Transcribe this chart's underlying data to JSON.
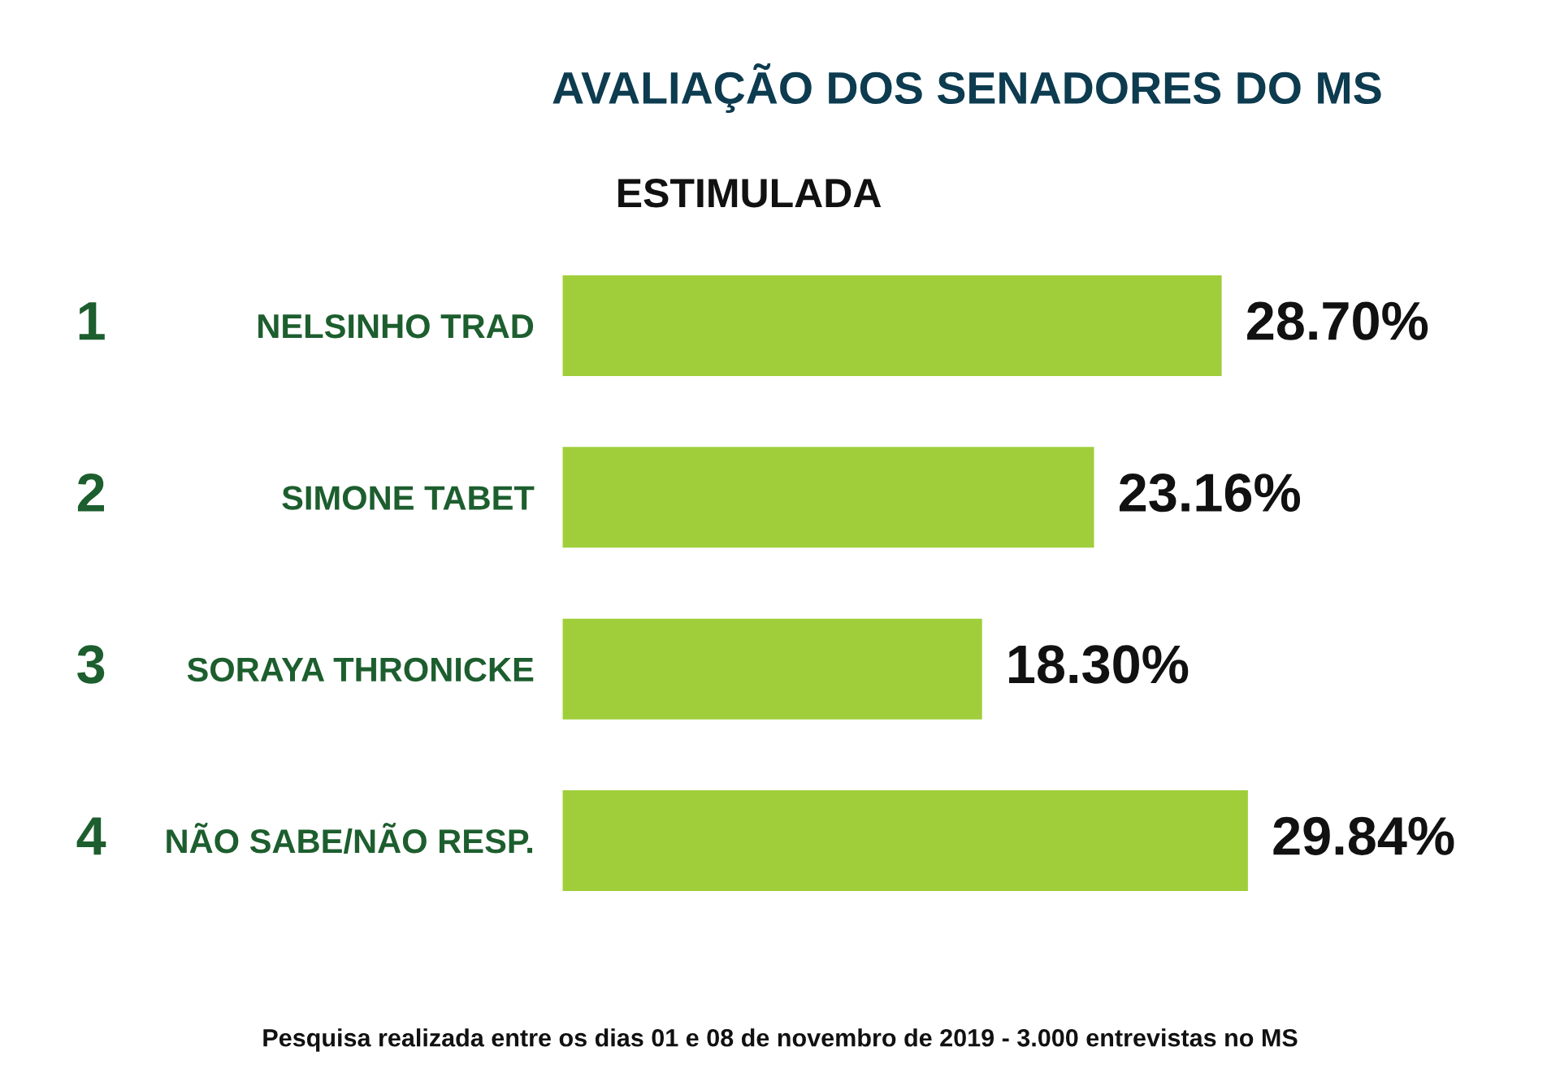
{
  "chart_data": {
    "type": "bar",
    "orientation": "horizontal",
    "title": "AVALIAÇÃO DOS SENADORES DO MS",
    "subtitle": "ESTIMULADA",
    "categories": [
      "NELSINHO TRAD",
      "SIMONE TABET",
      "SORAYA THRONICKE",
      "NÃO SABE/NÃO RESP."
    ],
    "values": [
      28.7,
      23.16,
      18.3,
      29.84
    ],
    "value_labels": [
      "28.70%",
      "23.16%",
      "18.30%",
      "29.84%"
    ],
    "color": "#9fce3a",
    "annotations": [
      "1",
      "2",
      "3",
      "4",
      "Pesquisa realizada entre os dias 01 e 08 de novembro de 2019 - 3.000 entrevistas no MS"
    ],
    "grid": false,
    "legend": false
  }
}
